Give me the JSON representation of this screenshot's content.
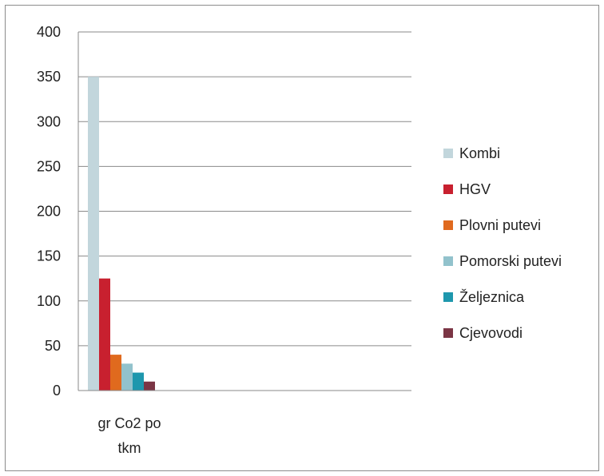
{
  "chart_data": {
    "type": "bar",
    "categories": [
      "gr Co2 po tkm"
    ],
    "series": [
      {
        "name": "Kombi",
        "values": [
          350
        ],
        "color": "#c2d6dc"
      },
      {
        "name": "HGV",
        "values": [
          125
        ],
        "color": "#c8202f"
      },
      {
        "name": "Plovni putevi",
        "values": [
          40
        ],
        "color": "#e06a1e"
      },
      {
        "name": "Pomorski putevi",
        "values": [
          30
        ],
        "color": "#92c2cc"
      },
      {
        "name": "Željeznica",
        "values": [
          20
        ],
        "color": "#1e97ad"
      },
      {
        "name": "Cjevovodi",
        "values": [
          10
        ],
        "color": "#7b3545"
      }
    ],
    "ylim": [
      0,
      400
    ],
    "yticks": [
      0,
      50,
      100,
      150,
      200,
      250,
      300,
      350,
      400
    ],
    "grid": true,
    "legend_position": "right"
  }
}
